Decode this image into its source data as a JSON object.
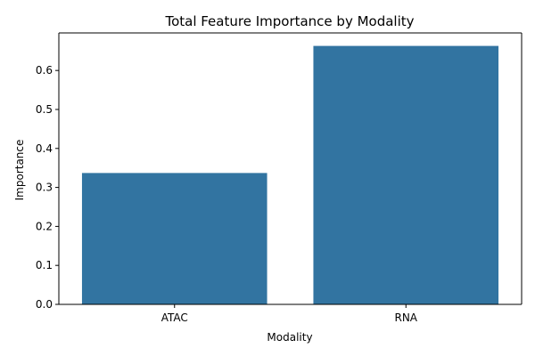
{
  "chart_data": {
    "type": "bar",
    "title": "Total Feature Importance by Modality",
    "xlabel": "Modality",
    "ylabel": "Importance",
    "categories": [
      "ATAC",
      "RNA"
    ],
    "values": [
      0.337,
      0.663
    ],
    "ylim": [
      0,
      0.6963
    ],
    "yticks": [
      0.0,
      0.1,
      0.2,
      0.3,
      0.4,
      0.5,
      0.6
    ],
    "ytick_labels": [
      "0.0",
      "0.1",
      "0.2",
      "0.3",
      "0.4",
      "0.5",
      "0.6"
    ],
    "bar_color": "#3274a1",
    "grid": false,
    "legend": false
  }
}
